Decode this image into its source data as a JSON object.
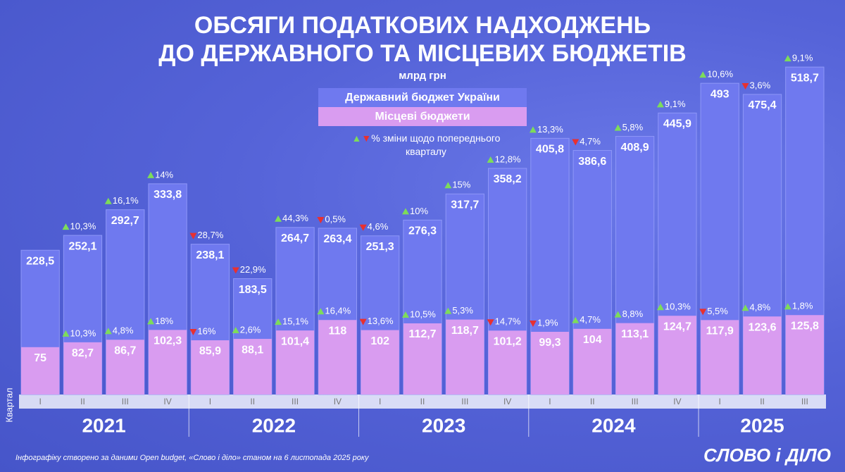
{
  "chart_data": {
    "type": "bar",
    "title": [
      "ОБСЯГИ ПОДАТКОВИХ НАДХОДЖЕНЬ",
      "ДО ДЕРЖАВНОГО ТА МІСЦЕВИХ БЮДЖЕТІВ"
    ],
    "subtitle": "млрд грн",
    "change_note": "% зміни щодо попереднього кварталу",
    "x_label": "Квартал",
    "footer": "Інфографіку створено за даними Open budget, «Слово і діло» станом на 6 листопада 2025 року",
    "logo": "СЛОВО і ДІЛО",
    "categories": [
      "I",
      "II",
      "III",
      "IV",
      "I",
      "II",
      "III",
      "IV",
      "I",
      "II",
      "III",
      "IV",
      "I",
      "II",
      "III",
      "IV",
      "I",
      "II",
      "III"
    ],
    "x_groups": [
      "2021",
      "2021",
      "2021",
      "2021",
      "2022",
      "2022",
      "2022",
      "2022",
      "2023",
      "2023",
      "2023",
      "2023",
      "2024",
      "2024",
      "2024",
      "2024",
      "2025",
      "2025",
      "2025"
    ],
    "ylim": [
      0,
      520
    ],
    "series": [
      {
        "name": "Державний бюджет України",
        "color": "#6f79ef",
        "values": [
          228.5,
          252.1,
          292.7,
          333.8,
          238.1,
          183.5,
          264.7,
          263.4,
          251.3,
          276.3,
          317.7,
          358.2,
          405.8,
          386.6,
          408.9,
          445.9,
          493,
          475.4,
          518.7
        ],
        "value_labels": [
          "228,5",
          "252,1",
          "292,7",
          "333,8",
          "238,1",
          "183,5",
          "264,7",
          "263,4",
          "251,3",
          "276,3",
          "317,7",
          "358,2",
          "405,8",
          "386,6",
          "408,9",
          "445,9",
          "493",
          "475,4",
          "518,7"
        ],
        "changes": [
          null,
          10.3,
          16.1,
          14,
          -28.7,
          -22.9,
          44.3,
          -0.5,
          -4.6,
          10,
          15,
          12.8,
          13.3,
          -4.7,
          5.8,
          9.1,
          10.6,
          -3.6,
          9.1
        ],
        "change_labels": [
          null,
          "10,3%",
          "16,1%",
          "14%",
          "28,7%",
          "22,9%",
          "44,3%",
          "0,5%",
          "4,6%",
          "10%",
          "15%",
          "12,8%",
          "13,3%",
          "4,7%",
          "5,8%",
          "9,1%",
          "10,6%",
          "3,6%",
          "9,1%"
        ]
      },
      {
        "name": "Місцеві бюджети",
        "color": "#d99cf0",
        "values": [
          75,
          82.7,
          86.7,
          102.3,
          85.9,
          88.1,
          101.4,
          118,
          102,
          112.7,
          118.7,
          101.2,
          99.3,
          104,
          113.1,
          124.7,
          117.9,
          123.6,
          125.8
        ],
        "value_labels": [
          "75",
          "82,7",
          "86,7",
          "102,3",
          "85,9",
          "88,1",
          "101,4",
          "118",
          "102",
          "112,7",
          "118,7",
          "101,2",
          "99,3",
          "104",
          "113,1",
          "124,7",
          "117,9",
          "123,6",
          "125,8"
        ],
        "changes": [
          null,
          10.3,
          4.8,
          18,
          -16,
          2.6,
          15.1,
          16.4,
          -13.6,
          10.5,
          5.3,
          -14.7,
          -1.9,
          4.7,
          8.8,
          10.3,
          -5.5,
          4.8,
          1.8
        ],
        "change_labels": [
          null,
          "10,3%",
          "4,8%",
          "18%",
          "16%",
          "2,6%",
          "15,1%",
          "16,4%",
          "13,6%",
          "10,5%",
          "5,3%",
          "14,7%",
          "1,9%",
          "4,7%",
          "8,8%",
          "10,3%",
          "5,5%",
          "4,8%",
          "1,8%"
        ]
      }
    ]
  }
}
